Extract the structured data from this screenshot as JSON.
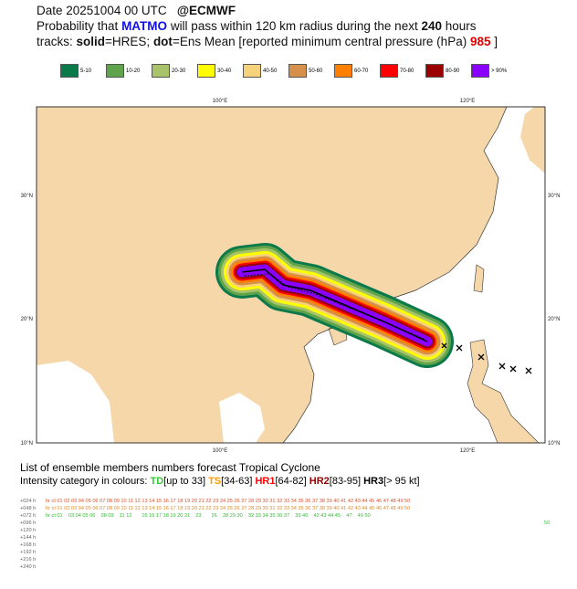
{
  "header": {
    "line1": [
      "Date 20251004 00 UTC",
      "@ECMWF"
    ],
    "line2": [
      "Probability that ",
      "MATMO",
      " will pass within 120 km radius during the next ",
      "240",
      " hours"
    ],
    "line3": [
      "tracks: ",
      "solid",
      "=HRES; ",
      "dot",
      "=Ens Mean [reported minimum central pressure (hPa) ",
      "985",
      " ]"
    ]
  },
  "legend": [
    {
      "label": "5-10",
      "color": "#0b7a4a"
    },
    {
      "label": "10-20",
      "color": "#5fa34a"
    },
    {
      "label": "20-30",
      "color": "#a9c36a"
    },
    {
      "label": "30-40",
      "color": "#ffff00"
    },
    {
      "label": "40-50",
      "color": "#f6d27a"
    },
    {
      "label": "50-60",
      "color": "#d7904a"
    },
    {
      "label": "60-70",
      "color": "#ff8000"
    },
    {
      "label": "70-80",
      "color": "#ff0000"
    },
    {
      "label": "80-90",
      "color": "#9b0000"
    },
    {
      "label": "> 90%",
      "color": "#8a00ff"
    }
  ],
  "map": {
    "lon_labels": [
      "100°E",
      "120°E"
    ],
    "lat_labels": [
      "30°N",
      "20°N",
      "10°N"
    ]
  },
  "footer": {
    "title": "List of ensemble members numbers forecast Tropical Cyclone",
    "intensity": [
      {
        "text": "Intensity category in colours: ",
        "color": "#000000"
      },
      {
        "text": "TD",
        "color": "#33cc33"
      },
      {
        "text": "[up to 33] ",
        "color": "#000000"
      },
      {
        "text": "TS",
        "color": "#ff9900"
      },
      {
        "text": "[34-63] ",
        "color": "#000000"
      },
      {
        "text": "HR1",
        "color": "#ff0000"
      },
      {
        "text": "[64-82] ",
        "color": "#000000"
      },
      {
        "text": "HR2",
        "color": "#990000"
      },
      {
        "text": "[83-95] ",
        "color": "#000000"
      },
      {
        "text": "HR3",
        "color": "#000000"
      },
      {
        "text": "[> 95 kt]",
        "color": "#000000"
      }
    ]
  },
  "table": {
    "rows": [
      {
        "lead": "+024 h",
        "members": "hr ct 01 02 03 04 05 06 07 08 09 10 11 12 13 14 15 16 17 18 19 20 21 22 23 24 25 26 27 28 29 30 31 32 33 34 35 36 37 38 39 40 41 42 43 44 45 46 47 48 49 50",
        "color": "#e0502a"
      },
      {
        "lead": "+048 h",
        "members": "hr ct 01 02 03 04 05 06 07 08 09 10 11 12 13 14 15 16 17 18 19 20 21 22 23 24 25 26 27 28 29 30 31 32 33 34 35 36 37 38 39 40 41 42 43 44 45 46 47 48 49 50",
        "color": "#e08a2a"
      },
      {
        "lead": "+072 h",
        "members": "hr ct 01    03 04 05 06    08 09    11 12       15 16 17 18 19 20 21    23       26    28 29 30    32 33 34 35 36 37    39 40    42 43 44 45    47    49 50",
        "color": "#33bb33"
      },
      {
        "lead": "+096 h",
        "members": "50",
        "color": "#33bb33"
      },
      {
        "lead": "+120 h",
        "members": "",
        "color": "#33bb33"
      },
      {
        "lead": "+144 h",
        "members": "",
        "color": "#33bb33"
      },
      {
        "lead": "+168 h",
        "members": "",
        "color": "#33bb33"
      },
      {
        "lead": "+192 h",
        "members": "",
        "color": "#33bb33"
      },
      {
        "lead": "+216 h",
        "members": "",
        "color": "#33bb33"
      },
      {
        "lead": "+240 h",
        "members": "",
        "color": "#33bb33"
      }
    ]
  }
}
